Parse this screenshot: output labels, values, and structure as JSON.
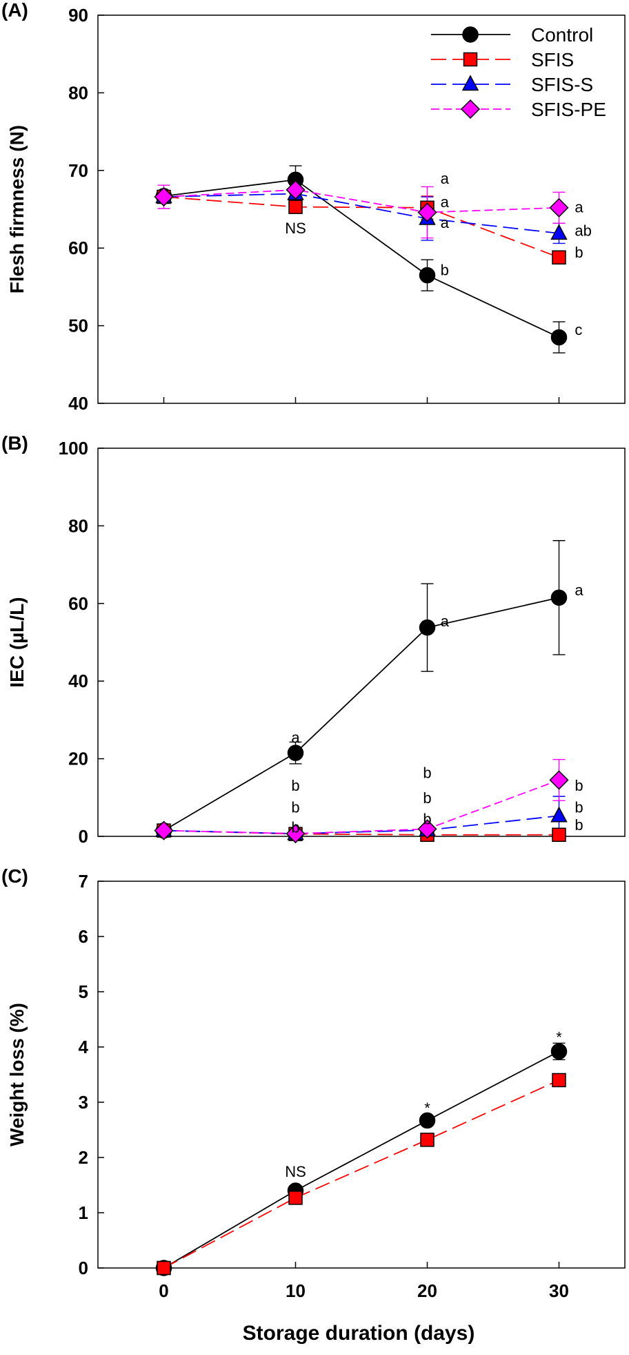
{
  "x_axis_label": "Storage duration (days)",
  "x_ticks": [
    0,
    10,
    20,
    30
  ],
  "series_styles": {
    "Control": {
      "color": "#000000",
      "fill": "#000000",
      "marker": "circle",
      "dash": "solid"
    },
    "SFIS": {
      "color": "#ff0000",
      "fill": "#ff0000",
      "marker": "square",
      "dash": "long"
    },
    "SFIS-S": {
      "color": "#0000ff",
      "fill": "#0000ff",
      "marker": "triangle",
      "dash": "long"
    },
    "SFIS-PE": {
      "color": "#ff00ff",
      "fill": "#ff00ff",
      "marker": "diamond",
      "dash": "short"
    }
  },
  "chart_data": [
    {
      "type": "line",
      "panel_label": "(A)",
      "ylabel": "Flesh firmness (N)",
      "ylim": [
        40,
        90
      ],
      "yticks": [
        40,
        50,
        60,
        70,
        80,
        90
      ],
      "xlim": [
        -5,
        35
      ],
      "legend": "top-right",
      "x": [
        0,
        10,
        20,
        30
      ],
      "series": [
        {
          "name": "Control",
          "values": [
            66.7,
            68.8,
            56.5,
            48.5
          ],
          "errors": [
            0.6,
            1.8,
            2.0,
            2.0
          ]
        },
        {
          "name": "SFIS",
          "values": [
            66.6,
            65.3,
            65.2,
            58.8
          ],
          "errors": [
            0.6,
            0.8,
            1.5,
            0.8
          ]
        },
        {
          "name": "SFIS-S",
          "values": [
            66.6,
            67.0,
            63.8,
            61.9
          ],
          "errors": [
            0.6,
            1.5,
            2.8,
            1.3
          ]
        },
        {
          "name": "SFIS-PE",
          "values": [
            66.6,
            67.5,
            64.6,
            65.2
          ],
          "errors": [
            1.5,
            1.0,
            3.3,
            2.0
          ]
        }
      ],
      "annotations": [
        {
          "x": 10,
          "y": 62.6,
          "text": "NS",
          "anchor": "middle"
        },
        {
          "x": 21,
          "y": 69.0,
          "text": "a",
          "anchor": "start"
        },
        {
          "x": 21,
          "y": 66.0,
          "text": "a",
          "anchor": "start"
        },
        {
          "x": 21,
          "y": 63.3,
          "text": "a",
          "anchor": "start"
        },
        {
          "x": 21,
          "y": 57.2,
          "text": "b",
          "anchor": "start"
        },
        {
          "x": 31.2,
          "y": 65.3,
          "text": "a",
          "anchor": "start"
        },
        {
          "x": 31.2,
          "y": 62.3,
          "text": "ab",
          "anchor": "start"
        },
        {
          "x": 31.2,
          "y": 59.5,
          "text": "b",
          "anchor": "start"
        },
        {
          "x": 31.2,
          "y": 49.5,
          "text": "c",
          "anchor": "start"
        }
      ]
    },
    {
      "type": "line",
      "panel_label": "(B)",
      "ylabel": "IEC (µL/L)",
      "ylim": [
        0,
        100
      ],
      "yticks": [
        0,
        20,
        40,
        60,
        80,
        100
      ],
      "xlim": [
        -5,
        35
      ],
      "x": [
        0,
        10,
        20,
        30
      ],
      "series": [
        {
          "name": "Control",
          "values": [
            1.5,
            21.5,
            53.8,
            61.5
          ],
          "errors": [
            0.5,
            2.8,
            11.3,
            14.7
          ]
        },
        {
          "name": "SFIS",
          "values": [
            1.5,
            0.6,
            0.4,
            0.4
          ],
          "errors": [
            0.3,
            0.3,
            0.3,
            0.3
          ]
        },
        {
          "name": "SFIS-S",
          "values": [
            1.5,
            0.7,
            1.6,
            5.3
          ],
          "errors": [
            0.3,
            0.3,
            0.5,
            5.0
          ]
        },
        {
          "name": "SFIS-PE",
          "values": [
            1.5,
            0.7,
            1.9,
            14.5
          ],
          "errors": [
            0.3,
            0.3,
            0.5,
            5.3
          ]
        }
      ],
      "annotations": [
        {
          "x": 10,
          "y": 25.5,
          "text": "a",
          "anchor": "middle"
        },
        {
          "x": 10,
          "y": 13.2,
          "text": "b",
          "anchor": "middle"
        },
        {
          "x": 10,
          "y": 7.6,
          "text": "b",
          "anchor": "middle"
        },
        {
          "x": 10,
          "y": 2.4,
          "text": "b",
          "anchor": "middle"
        },
        {
          "x": 20,
          "y": 16.5,
          "text": "b",
          "anchor": "middle"
        },
        {
          "x": 20,
          "y": 10.0,
          "text": "b",
          "anchor": "middle"
        },
        {
          "x": 20,
          "y": 4.5,
          "text": "b",
          "anchor": "middle"
        },
        {
          "x": 21,
          "y": 55.5,
          "text": "a",
          "anchor": "start"
        },
        {
          "x": 31.2,
          "y": 63.5,
          "text": "a",
          "anchor": "start"
        },
        {
          "x": 31.2,
          "y": 13.2,
          "text": "b",
          "anchor": "start"
        },
        {
          "x": 31.2,
          "y": 7.6,
          "text": "b",
          "anchor": "start"
        },
        {
          "x": 31.2,
          "y": 3.0,
          "text": "b",
          "anchor": "start"
        }
      ]
    },
    {
      "type": "line",
      "panel_label": "(C)",
      "ylabel": "Weight loss (%)",
      "ylim": [
        0,
        7
      ],
      "yticks": [
        0,
        1,
        2,
        3,
        4,
        5,
        6,
        7
      ],
      "xlim": [
        -5,
        35
      ],
      "x": [
        0,
        10,
        20,
        30
      ],
      "series": [
        {
          "name": "Control",
          "values": [
            0.0,
            1.4,
            2.67,
            3.92
          ],
          "errors": [
            0.0,
            0.05,
            0.08,
            0.15
          ]
        },
        {
          "name": "SFIS",
          "values": [
            0.0,
            1.27,
            2.32,
            3.4
          ],
          "errors": [
            0.0,
            0.04,
            0.05,
            0.06
          ]
        }
      ],
      "annotations": [
        {
          "x": 10,
          "y": 1.75,
          "text": "NS",
          "anchor": "middle"
        },
        {
          "x": 20,
          "y": 2.9,
          "text": "*",
          "anchor": "middle"
        },
        {
          "x": 30,
          "y": 4.18,
          "text": "*",
          "anchor": "middle"
        }
      ]
    }
  ]
}
